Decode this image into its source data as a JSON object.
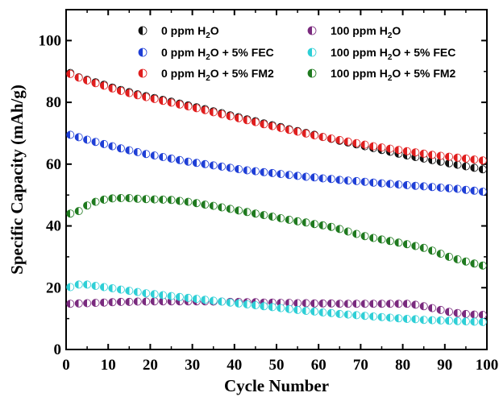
{
  "chart_data": {
    "type": "scatter",
    "xlabel": "Cycle Number",
    "ylabel": "Specific Capacity (mAh/g)",
    "xlim": [
      0,
      100
    ],
    "ylim": [
      0,
      110
    ],
    "xticks": [
      0,
      10,
      20,
      30,
      40,
      50,
      60,
      70,
      80,
      90,
      100
    ],
    "yticks": [
      0,
      20,
      40,
      60,
      80,
      100
    ],
    "grid": false,
    "legend_placement": "top",
    "series": [
      {
        "name_main": "0 ppm H",
        "name_sub": "2",
        "name_tail": "O",
        "color": "#111111",
        "x": [
          1,
          3,
          5,
          7,
          9,
          11,
          13,
          15,
          17,
          19,
          21,
          23,
          25,
          27,
          29,
          31,
          33,
          35,
          37,
          39,
          41,
          43,
          45,
          47,
          49,
          51,
          53,
          55,
          57,
          59,
          61,
          63,
          65,
          67,
          69,
          71,
          73,
          75,
          77,
          79,
          81,
          83,
          85,
          87,
          89,
          91,
          93,
          95,
          97,
          99
        ],
        "y": [
          89.5,
          88.1,
          87.3,
          86.5,
          85.7,
          84.8,
          84.0,
          83.3,
          82.6,
          82.0,
          81.4,
          80.8,
          80.2,
          79.6,
          79.0,
          78.4,
          77.8,
          77.1,
          76.5,
          75.8,
          75.2,
          74.5,
          73.9,
          73.2,
          72.6,
          72.0,
          71.3,
          70.7,
          70.1,
          69.5,
          68.8,
          68.2,
          67.6,
          67.0,
          66.4,
          65.8,
          65.2,
          64.6,
          64.0,
          63.4,
          62.8,
          62.3,
          61.8,
          61.3,
          60.8,
          60.3,
          59.8,
          59.3,
          58.8,
          58.3
        ]
      },
      {
        "name_main": "100 ppm H",
        "name_sub": "2",
        "name_tail": "O",
        "color": "#7a2a7e",
        "x": [
          1,
          3,
          5,
          7,
          9,
          11,
          13,
          15,
          17,
          19,
          21,
          23,
          25,
          27,
          29,
          31,
          33,
          35,
          37,
          39,
          41,
          43,
          45,
          47,
          49,
          51,
          53,
          55,
          57,
          59,
          61,
          63,
          65,
          67,
          69,
          71,
          73,
          75,
          77,
          79,
          81,
          83,
          85,
          87,
          89,
          91,
          93,
          95,
          97,
          99
        ],
        "y": [
          14.8,
          14.9,
          15.0,
          15.1,
          15.2,
          15.3,
          15.4,
          15.4,
          15.5,
          15.5,
          15.6,
          15.6,
          15.6,
          15.6,
          15.6,
          15.6,
          15.6,
          15.5,
          15.5,
          15.4,
          15.4,
          15.3,
          15.3,
          15.2,
          15.2,
          15.1,
          15.1,
          15.0,
          15.0,
          14.9,
          14.9,
          14.9,
          14.8,
          14.8,
          14.8,
          14.8,
          14.8,
          14.8,
          14.8,
          14.8,
          14.8,
          14.5,
          14.0,
          13.4,
          12.8,
          12.2,
          11.8,
          11.5,
          11.3,
          11.2
        ]
      },
      {
        "name_main": "0 ppm H",
        "name_sub": "2",
        "name_tail": "O + 5% FEC",
        "color": "#1f3fd6",
        "x": [
          1,
          3,
          5,
          7,
          9,
          11,
          13,
          15,
          17,
          19,
          21,
          23,
          25,
          27,
          29,
          31,
          33,
          35,
          37,
          39,
          41,
          43,
          45,
          47,
          49,
          51,
          53,
          55,
          57,
          59,
          61,
          63,
          65,
          67,
          69,
          71,
          73,
          75,
          77,
          79,
          81,
          83,
          85,
          87,
          89,
          91,
          93,
          95,
          97,
          99
        ],
        "y": [
          69.5,
          68.7,
          67.9,
          67.2,
          66.5,
          65.8,
          65.1,
          64.5,
          63.9,
          63.3,
          62.8,
          62.3,
          61.8,
          61.3,
          60.8,
          60.4,
          60.0,
          59.6,
          59.2,
          58.8,
          58.4,
          58.0,
          57.7,
          57.4,
          57.1,
          56.8,
          56.5,
          56.2,
          55.9,
          55.7,
          55.4,
          55.2,
          54.9,
          54.7,
          54.5,
          54.3,
          54.0,
          53.8,
          53.6,
          53.4,
          53.2,
          53.0,
          52.8,
          52.6,
          52.4,
          52.2,
          52.0,
          51.7,
          51.4,
          51.1
        ]
      },
      {
        "name_main": "100 ppm H",
        "name_sub": "2",
        "name_tail": "O + 5% FEC",
        "color": "#2ecfd6",
        "x": [
          1,
          3,
          5,
          7,
          9,
          11,
          13,
          15,
          17,
          19,
          21,
          23,
          25,
          27,
          29,
          31,
          33,
          35,
          37,
          39,
          41,
          43,
          45,
          47,
          49,
          51,
          53,
          55,
          57,
          59,
          61,
          63,
          65,
          67,
          69,
          71,
          73,
          75,
          77,
          79,
          81,
          83,
          85,
          87,
          89,
          91,
          93,
          95,
          97,
          99
        ],
        "y": [
          20.2,
          21.0,
          21.0,
          20.6,
          20.2,
          19.8,
          19.4,
          19.0,
          18.6,
          18.2,
          17.9,
          17.6,
          17.3,
          17.0,
          16.7,
          16.4,
          16.1,
          15.8,
          15.5,
          15.2,
          14.9,
          14.6,
          14.3,
          14.0,
          13.7,
          13.4,
          13.1,
          12.8,
          12.5,
          12.3,
          12.0,
          11.8,
          11.5,
          11.3,
          11.1,
          10.9,
          10.7,
          10.5,
          10.3,
          10.1,
          9.9,
          9.8,
          9.6,
          9.5,
          9.4,
          9.3,
          9.2,
          9.1,
          9.0,
          8.9
        ]
      },
      {
        "name_main": "0 ppm H",
        "name_sub": "2",
        "name_tail": "O + 5% FM2",
        "color": "#e01e1e",
        "x": [
          1,
          3,
          5,
          7,
          9,
          11,
          13,
          15,
          17,
          19,
          21,
          23,
          25,
          27,
          29,
          31,
          33,
          35,
          37,
          39,
          41,
          43,
          45,
          47,
          49,
          51,
          53,
          55,
          57,
          59,
          61,
          63,
          65,
          67,
          69,
          71,
          73,
          75,
          77,
          79,
          81,
          83,
          85,
          87,
          89,
          91,
          93,
          95,
          97,
          99
        ],
        "y": [
          89.2,
          88.0,
          87.1,
          86.2,
          85.4,
          84.5,
          83.7,
          83.0,
          82.3,
          81.7,
          81.1,
          80.5,
          79.9,
          79.3,
          78.7,
          78.1,
          77.5,
          76.8,
          76.2,
          75.5,
          74.9,
          74.2,
          73.6,
          72.9,
          72.3,
          71.7,
          71.1,
          70.5,
          69.9,
          69.3,
          68.8,
          68.3,
          67.8,
          67.3,
          66.8,
          66.3,
          65.8,
          65.4,
          65.0,
          64.6,
          64.2,
          63.8,
          63.4,
          63.0,
          62.7,
          62.4,
          62.1,
          61.8,
          61.5,
          61.2
        ]
      },
      {
        "name_main": "100 ppm H",
        "name_sub": "2",
        "name_tail": "O + 5% FM2",
        "color": "#1f7a1f",
        "x": [
          1,
          3,
          5,
          7,
          9,
          11,
          13,
          15,
          17,
          19,
          21,
          23,
          25,
          27,
          29,
          31,
          33,
          35,
          37,
          39,
          41,
          43,
          45,
          47,
          49,
          51,
          53,
          55,
          57,
          59,
          61,
          63,
          65,
          67,
          69,
          71,
          73,
          75,
          77,
          79,
          81,
          83,
          85,
          87,
          89,
          91,
          93,
          95,
          97,
          99
        ],
        "y": [
          44.0,
          44.8,
          46.6,
          47.8,
          48.5,
          48.9,
          49.0,
          49.0,
          48.8,
          48.7,
          48.6,
          48.5,
          48.4,
          48.1,
          47.8,
          47.4,
          46.9,
          46.5,
          46.0,
          45.5,
          45.0,
          44.5,
          44.0,
          43.5,
          43.0,
          42.5,
          42.0,
          41.5,
          41.1,
          40.6,
          40.2,
          39.7,
          39.0,
          38.2,
          37.4,
          36.7,
          36.1,
          35.6,
          35.1,
          34.6,
          34.1,
          33.5,
          32.9,
          32.0,
          31.0,
          30.0,
          29.2,
          28.5,
          27.8,
          27.2
        ]
      }
    ]
  }
}
